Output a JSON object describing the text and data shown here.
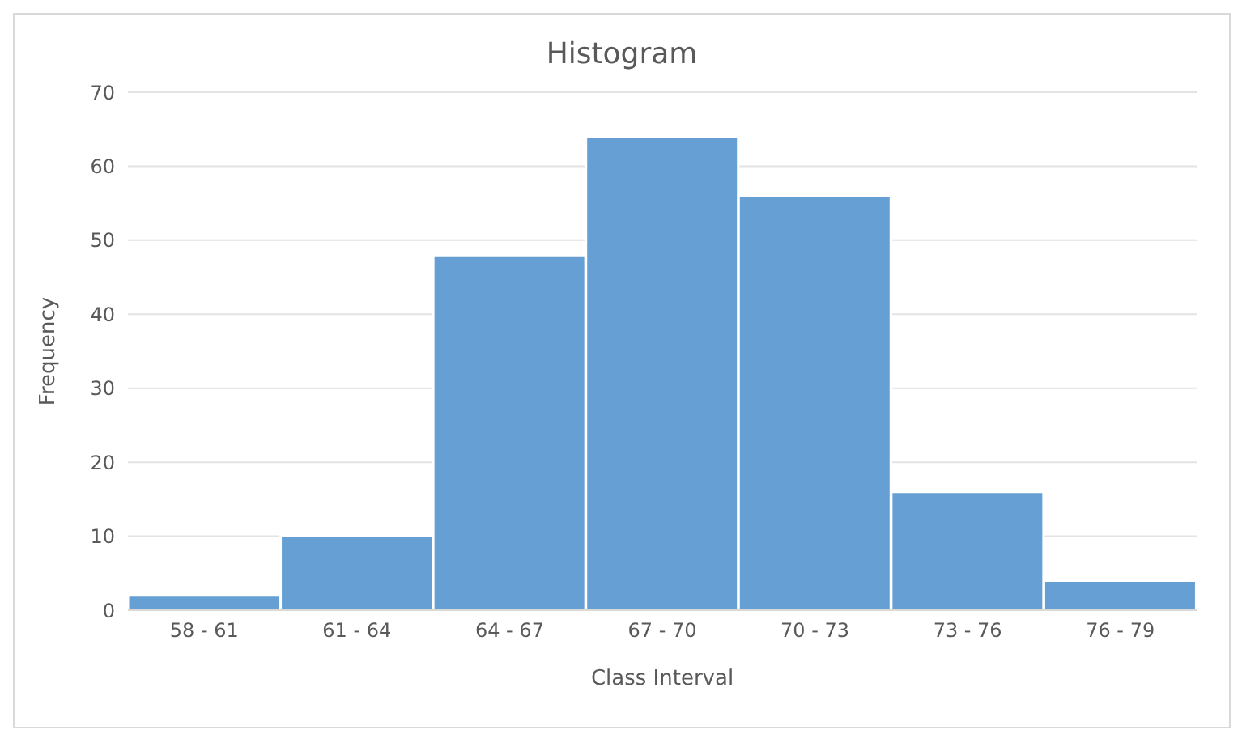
{
  "chart_data": {
    "type": "bar",
    "title": "Histogram",
    "xlabel": "Class Interval",
    "ylabel": "Frequency",
    "categories": [
      "58 - 61",
      "61 - 64",
      "64 - 67",
      "67 - 70",
      "70 - 73",
      "73 - 76",
      "76 - 79"
    ],
    "values": [
      2,
      10,
      48,
      64,
      56,
      16,
      4
    ],
    "color": "#659fd3",
    "ylim": [
      0,
      70
    ],
    "yticks": [
      0,
      10,
      20,
      30,
      40,
      50,
      60,
      70
    ],
    "grid": "y"
  }
}
